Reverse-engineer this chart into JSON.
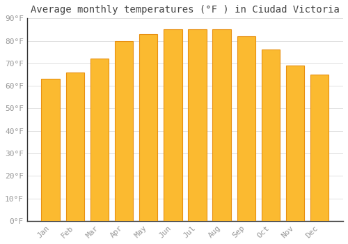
{
  "title": "Average monthly temperatures (°F ) in Ciudad Victoria",
  "months": [
    "Jan",
    "Feb",
    "Mar",
    "Apr",
    "May",
    "Jun",
    "Jul",
    "Aug",
    "Sep",
    "Oct",
    "Nov",
    "Dec"
  ],
  "values": [
    63,
    66,
    72,
    80,
    83,
    85,
    85,
    85,
    82,
    76,
    69,
    65
  ],
  "ylim": [
    0,
    90
  ],
  "yticks": [
    0,
    10,
    20,
    30,
    40,
    50,
    60,
    70,
    80,
    90
  ],
  "ytick_labels": [
    "0°F",
    "10°F",
    "20°F",
    "30°F",
    "40°F",
    "50°F",
    "60°F",
    "70°F",
    "80°F",
    "90°F"
  ],
  "bar_color_main": "#FBBA30",
  "bar_color_edge": "#E89010",
  "background_color": "#FFFFFF",
  "grid_color": "#E0E0E0",
  "title_fontsize": 10,
  "tick_fontsize": 8,
  "font_family": "monospace",
  "tick_color": "#999999",
  "spine_color": "#333333"
}
